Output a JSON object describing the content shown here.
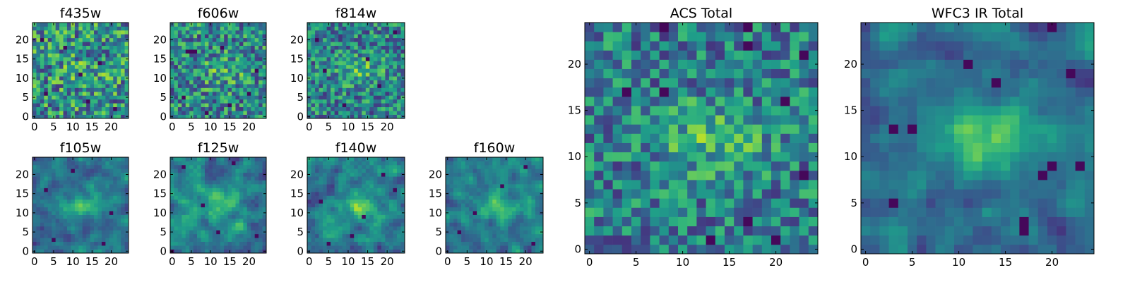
{
  "chart_data": [
    {
      "type": "heatmap",
      "title": "f435w",
      "colormap": "viridis",
      "grid_size": 25,
      "xlim": [
        0,
        25
      ],
      "ylim": [
        0,
        25
      ],
      "xticks": [
        0,
        5,
        10,
        15,
        20
      ],
      "yticks": [
        0,
        5,
        10,
        15,
        20
      ],
      "seed": 11,
      "smooth": 0,
      "bump": 0.15,
      "lows": [
        [
          3,
          6
        ],
        [
          8,
          18
        ],
        [
          14,
          4
        ],
        [
          17,
          14
        ],
        [
          21,
          2
        ],
        [
          2,
          20
        ],
        [
          12,
          11
        ]
      ]
    },
    {
      "type": "heatmap",
      "title": "f606w",
      "colormap": "viridis",
      "grid_size": 25,
      "xlim": [
        0,
        25
      ],
      "ylim": [
        0,
        25
      ],
      "xticks": [
        0,
        5,
        10,
        15,
        20
      ],
      "yticks": [
        0,
        5,
        10,
        15,
        20
      ],
      "seed": 23,
      "smooth": 0,
      "bump": 0.25,
      "lows": [
        [
          4,
          17
        ],
        [
          5,
          17
        ],
        [
          6,
          17
        ],
        [
          13,
          18
        ],
        [
          20,
          6
        ],
        [
          15,
          3
        ],
        [
          3,
          5
        ],
        [
          22,
          12
        ],
        [
          9,
          1
        ]
      ]
    },
    {
      "type": "heatmap",
      "title": "f814w",
      "colormap": "viridis",
      "grid_size": 25,
      "xlim": [
        0,
        25
      ],
      "ylim": [
        0,
        25
      ],
      "xticks": [
        0,
        5,
        10,
        15,
        20
      ],
      "yticks": [
        0,
        5,
        10,
        15,
        20
      ],
      "seed": 37,
      "smooth": 0,
      "bump": 0.35,
      "lows": [
        [
          2,
          20
        ],
        [
          18,
          8
        ],
        [
          9,
          3
        ],
        [
          22,
          22
        ],
        [
          15,
          15
        ],
        [
          4,
          12
        ]
      ]
    },
    {
      "type": "heatmap",
      "title": "f105w",
      "colormap": "viridis",
      "grid_size": 25,
      "xlim": [
        0,
        25
      ],
      "ylim": [
        0,
        25
      ],
      "xticks": [
        0,
        5,
        10,
        15,
        20
      ],
      "yticks": [
        0,
        5,
        10,
        15,
        20
      ],
      "seed": 41,
      "smooth": 1,
      "bump": 0.7,
      "lows": [
        [
          5,
          3
        ],
        [
          18,
          2
        ],
        [
          3,
          16
        ],
        [
          20,
          10
        ],
        [
          10,
          21
        ]
      ]
    },
    {
      "type": "heatmap",
      "title": "f125w",
      "colormap": "viridis",
      "grid_size": 25,
      "xlim": [
        0,
        25
      ],
      "ylim": [
        0,
        25
      ],
      "xticks": [
        0,
        5,
        10,
        15,
        20
      ],
      "yticks": [
        0,
        5,
        10,
        15,
        20
      ],
      "seed": 53,
      "smooth": 1,
      "bump": 0.45,
      "lows": [
        [
          0,
          0
        ],
        [
          16,
          23
        ],
        [
          8,
          12
        ],
        [
          22,
          4
        ],
        [
          3,
          22
        ],
        [
          12,
          5
        ]
      ]
    },
    {
      "type": "heatmap",
      "title": "f140w",
      "colormap": "viridis",
      "grid_size": 25,
      "xlim": [
        0,
        25
      ],
      "ylim": [
        0,
        25
      ],
      "xticks": [
        0,
        5,
        10,
        15,
        20
      ],
      "yticks": [
        0,
        5,
        10,
        15,
        20
      ],
      "seed": 67,
      "smooth": 1,
      "bump": 0.55,
      "lows": [
        [
          11,
          4
        ],
        [
          5,
          2
        ],
        [
          19,
          20
        ],
        [
          22,
          16
        ],
        [
          3,
          13
        ],
        [
          14,
          9
        ]
      ]
    },
    {
      "type": "heatmap",
      "title": "f160w",
      "colormap": "viridis",
      "grid_size": 25,
      "xlim": [
        0,
        25
      ],
      "ylim": [
        0,
        25
      ],
      "xticks": [
        0,
        5,
        10,
        15,
        20
      ],
      "yticks": [
        0,
        5,
        10,
        15,
        20
      ],
      "seed": 79,
      "smooth": 1,
      "bump": 0.6,
      "lows": [
        [
          20,
          22
        ],
        [
          22,
          2
        ],
        [
          3,
          5
        ],
        [
          14,
          17
        ],
        [
          7,
          10
        ]
      ]
    },
    {
      "type": "heatmap",
      "title": "ACS Total",
      "colormap": "viridis",
      "grid_size": 25,
      "xlim": [
        0,
        25
      ],
      "ylim": [
        0,
        25
      ],
      "xticks": [
        0,
        5,
        10,
        15,
        20
      ],
      "yticks": [
        0,
        5,
        10,
        15,
        20
      ],
      "seed": 97,
      "smooth": 0,
      "bump": 0.45,
      "lows": [
        [
          8,
          24
        ],
        [
          4,
          17
        ],
        [
          8,
          17
        ],
        [
          17,
          22
        ],
        [
          17,
          24
        ],
        [
          23,
          21
        ],
        [
          21,
          16
        ],
        [
          23,
          8
        ],
        [
          17,
          3
        ],
        [
          20,
          1
        ],
        [
          13,
          1
        ]
      ]
    },
    {
      "type": "heatmap",
      "title": "WFC3 IR Total",
      "colormap": "viridis",
      "grid_size": 25,
      "xlim": [
        0,
        25
      ],
      "ylim": [
        0,
        25
      ],
      "xticks": [
        0,
        5,
        10,
        15,
        20
      ],
      "yticks": [
        0,
        5,
        10,
        15,
        20
      ],
      "seed": 113,
      "smooth": 1,
      "bump": 0.85,
      "lows": [
        [
          3,
          13
        ],
        [
          5,
          13
        ],
        [
          11,
          20
        ],
        [
          14,
          18
        ],
        [
          19,
          8
        ],
        [
          20,
          9
        ],
        [
          3,
          5
        ],
        [
          17,
          3
        ],
        [
          17,
          2
        ],
        [
          20,
          24
        ],
        [
          22,
          19
        ],
        [
          23,
          9
        ]
      ]
    }
  ]
}
